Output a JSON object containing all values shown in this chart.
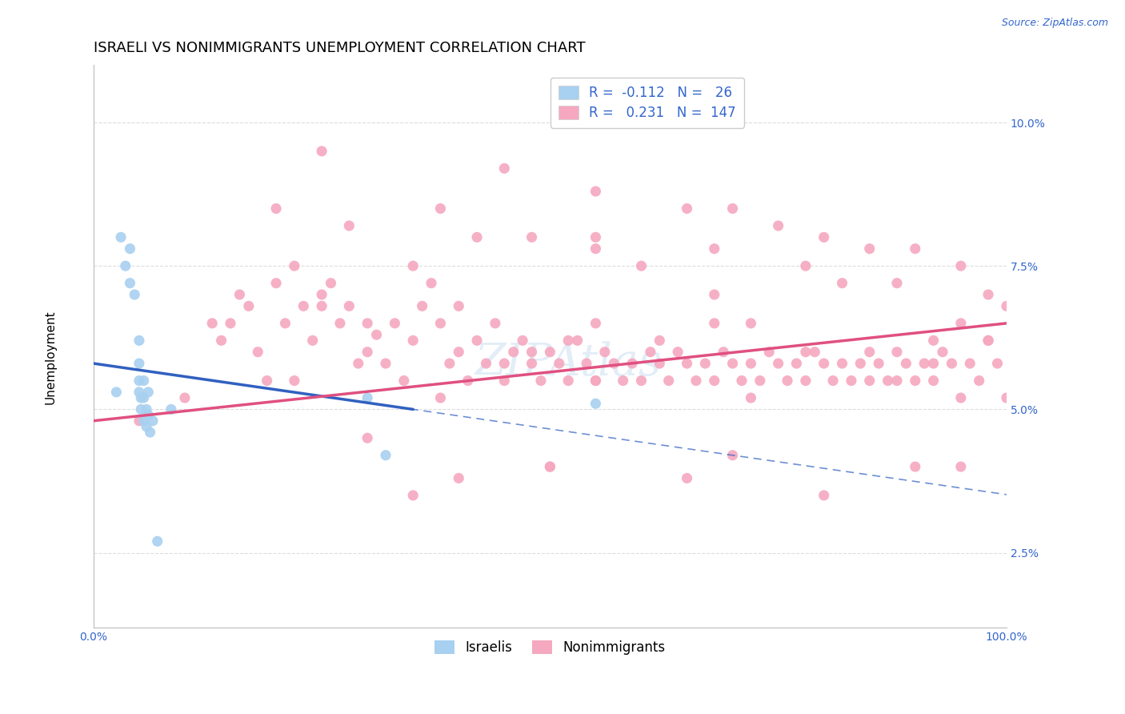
{
  "title": "ISRAELI VS NONIMMIGRANTS UNEMPLOYMENT CORRELATION CHART",
  "source_text": "Source: ZipAtlas.com",
  "ylabel": "Unemployment",
  "yticks": [
    2.5,
    5.0,
    7.5,
    10.0
  ],
  "ytick_labels": [
    "2.5%",
    "5.0%",
    "7.5%",
    "10.0%"
  ],
  "xlim": [
    0,
    100
  ],
  "ylim": [
    1.2,
    11.0
  ],
  "israelis_R": -0.112,
  "israelis_N": 26,
  "nonimmigrants_R": 0.231,
  "nonimmigrants_N": 147,
  "blue_color": "#A8D0F0",
  "pink_color": "#F5A8C0",
  "blue_line_color": "#3060C0",
  "pink_line_color": "#E05080",
  "background_color": "#FFFFFF",
  "grid_color": "#DDDDDD",
  "title_fontsize": 13,
  "axis_fontsize": 11,
  "tick_fontsize": 10,
  "watermark": "ZIPAtlas",
  "blue_x": [
    2.5,
    3.0,
    3.5,
    4.0,
    4.0,
    4.5,
    5.0,
    5.0,
    5.0,
    5.0,
    5.2,
    5.2,
    5.5,
    5.5,
    5.5,
    5.8,
    5.8,
    6.0,
    6.0,
    6.2,
    6.5,
    7.0,
    8.5,
    30.0,
    55.0,
    32.0
  ],
  "blue_y": [
    5.3,
    8.0,
    7.5,
    7.8,
    7.2,
    7.0,
    6.2,
    5.8,
    5.5,
    5.3,
    5.2,
    5.0,
    5.5,
    5.2,
    4.8,
    5.0,
    4.7,
    5.3,
    4.9,
    4.6,
    4.8,
    2.7,
    5.0,
    5.2,
    5.1,
    4.2
  ],
  "pink_x": [
    5,
    10,
    13,
    14,
    16,
    17,
    18,
    19,
    20,
    21,
    22,
    23,
    24,
    25,
    26,
    27,
    28,
    29,
    30,
    31,
    32,
    33,
    34,
    35,
    36,
    37,
    38,
    39,
    40,
    41,
    42,
    43,
    44,
    45,
    46,
    47,
    48,
    49,
    50,
    51,
    52,
    53,
    54,
    55,
    56,
    57,
    58,
    59,
    60,
    61,
    62,
    63,
    64,
    65,
    66,
    67,
    68,
    69,
    70,
    71,
    72,
    73,
    74,
    75,
    76,
    77,
    78,
    79,
    80,
    81,
    82,
    83,
    84,
    85,
    86,
    87,
    88,
    89,
    90,
    91,
    92,
    93,
    94,
    95,
    96,
    97,
    98,
    99,
    100,
    20,
    35,
    42,
    55,
    28,
    38,
    48,
    60,
    70,
    80,
    90,
    25,
    45,
    55,
    65,
    75,
    85,
    95,
    30,
    50,
    70,
    90,
    35,
    50,
    65,
    80,
    95,
    40,
    55,
    68,
    78,
    88,
    98,
    15,
    25,
    40,
    55,
    68,
    82,
    95,
    22,
    38,
    55,
    72,
    88,
    100,
    45,
    62,
    78,
    92,
    52,
    68,
    85,
    98,
    30,
    48,
    72,
    92
  ],
  "pink_y": [
    4.8,
    5.2,
    6.5,
    6.2,
    7.0,
    6.8,
    6.0,
    5.5,
    7.2,
    6.5,
    7.5,
    6.8,
    6.2,
    7.0,
    7.2,
    6.5,
    6.8,
    5.8,
    6.0,
    6.3,
    5.8,
    6.5,
    5.5,
    6.2,
    6.8,
    7.2,
    6.5,
    5.8,
    6.0,
    5.5,
    6.2,
    5.8,
    6.5,
    5.5,
    6.0,
    6.2,
    5.8,
    5.5,
    6.0,
    5.8,
    5.5,
    6.2,
    5.8,
    5.5,
    6.0,
    5.8,
    5.5,
    5.8,
    5.5,
    6.0,
    5.8,
    5.5,
    6.0,
    5.8,
    5.5,
    5.8,
    5.5,
    6.0,
    5.8,
    5.5,
    5.8,
    5.5,
    6.0,
    5.8,
    5.5,
    5.8,
    5.5,
    6.0,
    5.8,
    5.5,
    5.8,
    5.5,
    5.8,
    5.5,
    5.8,
    5.5,
    6.0,
    5.8,
    5.5,
    5.8,
    5.5,
    6.0,
    5.8,
    6.5,
    5.8,
    5.5,
    6.2,
    5.8,
    6.8,
    8.5,
    7.5,
    8.0,
    7.8,
    8.2,
    8.5,
    8.0,
    7.5,
    8.5,
    8.0,
    7.8,
    9.5,
    9.2,
    8.8,
    8.5,
    8.2,
    7.8,
    7.5,
    4.5,
    4.0,
    4.2,
    4.0,
    3.5,
    4.0,
    3.8,
    3.5,
    4.0,
    3.8,
    8.0,
    7.8,
    7.5,
    7.2,
    7.0,
    6.5,
    6.8,
    6.8,
    6.5,
    7.0,
    7.2,
    5.2,
    5.5,
    5.2,
    5.5,
    5.2,
    5.5,
    5.2,
    5.8,
    6.2,
    6.0,
    5.8,
    6.2,
    6.5,
    6.0,
    6.2,
    6.5,
    6.0,
    6.5,
    6.2
  ]
}
